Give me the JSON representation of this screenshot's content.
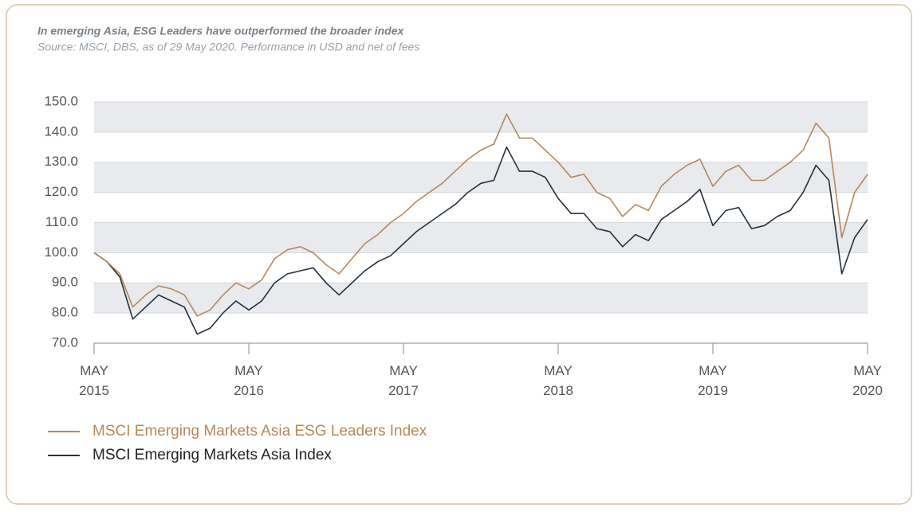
{
  "chart_data": {
    "type": "line",
    "title": "In emerging Asia, ESG Leaders have outperformed the broader index",
    "subtitle": "Source: MSCI, DBS, as of 29 May 2020. Performance in USD and net of fees",
    "x": [
      "2015-05",
      "2015-06",
      "2015-07",
      "2015-08",
      "2015-09",
      "2015-10",
      "2015-11",
      "2015-12",
      "2016-01",
      "2016-02",
      "2016-03",
      "2016-04",
      "2016-05",
      "2016-06",
      "2016-07",
      "2016-08",
      "2016-09",
      "2016-10",
      "2016-11",
      "2016-12",
      "2017-01",
      "2017-02",
      "2017-03",
      "2017-04",
      "2017-05",
      "2017-06",
      "2017-07",
      "2017-08",
      "2017-09",
      "2017-10",
      "2017-11",
      "2017-12",
      "2018-01",
      "2018-02",
      "2018-03",
      "2018-04",
      "2018-05",
      "2018-06",
      "2018-07",
      "2018-08",
      "2018-09",
      "2018-10",
      "2018-11",
      "2018-12",
      "2019-01",
      "2019-02",
      "2019-03",
      "2019-04",
      "2019-05",
      "2019-06",
      "2019-07",
      "2019-08",
      "2019-09",
      "2019-10",
      "2019-11",
      "2019-12",
      "2020-01",
      "2020-02",
      "2020-03",
      "2020-04",
      "2020-05"
    ],
    "series": [
      {
        "name": "MSCI Emerging Markets Asia ESG Leaders Index",
        "color": "#b5895a",
        "values": [
          100,
          97,
          93,
          82,
          86,
          89,
          88,
          86,
          79,
          81,
          86,
          90,
          88,
          91,
          98,
          101,
          102,
          100,
          96,
          93,
          98,
          103,
          106,
          110,
          113,
          117,
          120,
          123,
          127,
          131,
          134,
          136,
          146,
          138,
          138,
          134,
          130,
          125,
          126,
          120,
          118,
          112,
          116,
          114,
          122,
          126,
          129,
          131,
          122,
          127,
          129,
          124,
          124,
          127,
          130,
          134,
          143,
          138,
          105,
          120,
          126
        ]
      },
      {
        "name": "MSCI Emerging Markets Asia Index",
        "color": "#27313b",
        "values": [
          100,
          97,
          92,
          78,
          82,
          86,
          84,
          82,
          73,
          75,
          80,
          84,
          81,
          84,
          90,
          93,
          94,
          95,
          90,
          86,
          90,
          94,
          97,
          99,
          103,
          107,
          110,
          113,
          116,
          120,
          123,
          124,
          135,
          127,
          127,
          125,
          118,
          113,
          113,
          108,
          107,
          102,
          106,
          104,
          111,
          114,
          117,
          121,
          109,
          114,
          115,
          108,
          109,
          112,
          114,
          120,
          129,
          124,
          93,
          105,
          111
        ]
      }
    ],
    "xlim": [
      "2015-05",
      "2020-05"
    ],
    "xticks": [
      {
        "value": "2015-05",
        "label": "MAY 2015"
      },
      {
        "value": "2016-05",
        "label": "MAY 2016"
      },
      {
        "value": "2017-05",
        "label": "MAY 2017"
      },
      {
        "value": "2018-05",
        "label": "MAY 2018"
      },
      {
        "value": "2019-05",
        "label": "MAY 2019"
      },
      {
        "value": "2020-05",
        "label": "MAY 2020"
      }
    ],
    "ylim": [
      70,
      150
    ],
    "yticks": [
      {
        "value": 70,
        "label": "70.0"
      },
      {
        "value": 80,
        "label": "80.0"
      },
      {
        "value": 90,
        "label": "90.0"
      },
      {
        "value": 100,
        "label": "100.0"
      },
      {
        "value": 110,
        "label": "110.0"
      },
      {
        "value": 120,
        "label": "120.0"
      },
      {
        "value": 130,
        "label": "130.0"
      },
      {
        "value": 140,
        "label": "140.0"
      },
      {
        "value": 150,
        "label": "150.0"
      }
    ],
    "grid": "bands"
  }
}
